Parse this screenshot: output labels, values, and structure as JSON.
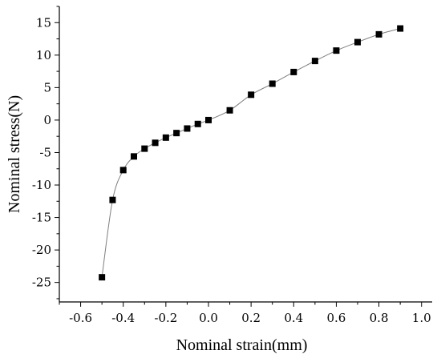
{
  "chart_data": {
    "type": "line",
    "title": "",
    "xlabel": "Nominal strain(mm)",
    "ylabel": "Nominal stress(N)",
    "xlim": [
      -0.7,
      1.05
    ],
    "ylim": [
      -28,
      17.5
    ],
    "x_ticks": [
      -0.6,
      -0.4,
      -0.2,
      0.0,
      0.2,
      0.4,
      0.6,
      0.8,
      1.0
    ],
    "x_tick_labels": [
      "-0.6",
      "-0.4",
      "-0.2",
      "0.0",
      "0.2",
      "0.4",
      "0.6",
      "0.8",
      "1.0"
    ],
    "y_ticks": [
      -25,
      -20,
      -15,
      -10,
      -5,
      0,
      5,
      10,
      15
    ],
    "y_tick_labels": [
      "-25",
      "-20",
      "-15",
      "-10",
      "-5",
      "0",
      "5",
      "10",
      "15"
    ],
    "grid": false,
    "marker": "square",
    "series": [
      {
        "x": [
          -0.5,
          -0.45,
          -0.4,
          -0.35,
          -0.3,
          -0.25,
          -0.2,
          -0.15,
          -0.1,
          -0.05,
          0.0,
          0.1,
          0.2,
          0.3,
          0.4,
          0.5,
          0.6,
          0.7,
          0.8,
          0.9
        ],
        "y": [
          -24.2,
          -12.3,
          -7.7,
          -5.6,
          -4.4,
          -3.5,
          -2.7,
          -2.0,
          -1.3,
          -0.6,
          0.0,
          1.5,
          3.9,
          5.6,
          7.4,
          9.1,
          10.7,
          12.0,
          13.2,
          14.1
        ]
      }
    ],
    "colors": {
      "line": "#7f7f7f",
      "marker": "#000000",
      "axis": "#000000"
    }
  }
}
